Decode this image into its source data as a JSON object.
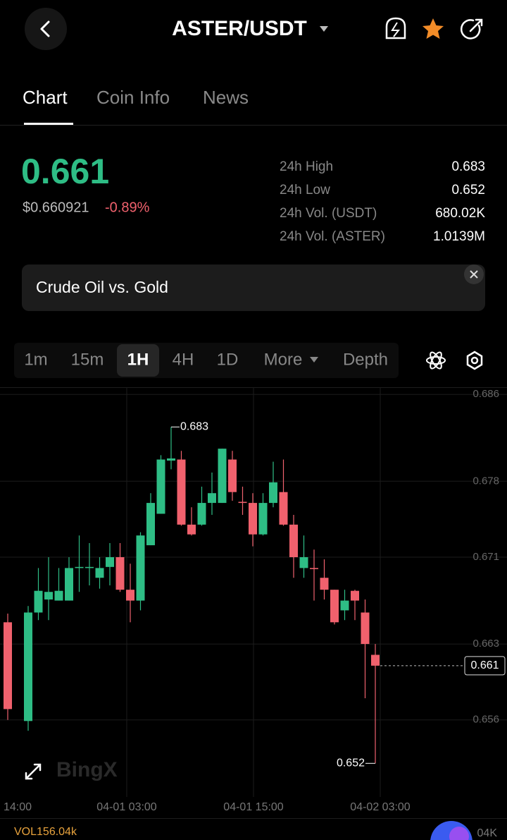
{
  "header": {
    "title": "ASTER/USDT"
  },
  "tabs": [
    "Chart",
    "Coin Info",
    "News"
  ],
  "price": {
    "last": "0.661",
    "usd": "$0.660921",
    "change": "-0.89%"
  },
  "stats": [
    {
      "label": "24h High",
      "value": "0.683"
    },
    {
      "label": "24h Low",
      "value": "0.652"
    },
    {
      "label": "24h Vol. (USDT)",
      "value": "680.02K"
    },
    {
      "label": "24h Vol. (ASTER)",
      "value": "1.0139M"
    }
  ],
  "banner": {
    "text": "Crude Oil vs. Gold"
  },
  "intervals": [
    "1m",
    "15m",
    "1H",
    "4H",
    "1D",
    "More",
    "Depth"
  ],
  "chart_data": {
    "type": "candlestick",
    "open": [
      0.665,
      null,
      0.6559,
      0.6659,
      0.6671,
      0.667,
      0.667,
      0.67,
      0.67,
      0.6691,
      0.6701,
      0.671,
      0.668,
      0.667,
      0.6721,
      0.675,
      0.6799,
      0.68,
      0.674,
      0.674,
      0.676,
      0.676,
      0.68,
      0.6761,
      0.676,
      0.6731,
      0.676,
      0.677,
      0.674,
      0.67,
      0.67,
      0.6691,
      0.668,
      0.6661,
      0.6679,
      0.6659,
      0.662
    ],
    "high": [
      0.6658,
      null,
      0.6665,
      0.67,
      0.671,
      0.67,
      0.671,
      0.673,
      0.6723,
      0.671,
      0.6723,
      0.6723,
      0.6704,
      0.6733,
      0.6769,
      0.6804,
      0.683,
      0.6808,
      0.6756,
      0.6775,
      0.6788,
      0.681,
      0.6808,
      0.6775,
      0.6769,
      0.6769,
      0.6798,
      0.68,
      0.6749,
      0.673,
      0.6717,
      0.6708,
      0.668,
      0.668,
      0.668,
      0.6671,
      0.663
    ],
    "low": [
      0.656,
      null,
      0.655,
      0.6652,
      0.6652,
      0.667,
      0.667,
      0.6678,
      0.6684,
      0.6681,
      0.6684,
      0.6678,
      0.665,
      0.6661,
      0.6721,
      0.675,
      0.6791,
      0.6739,
      0.673,
      0.6739,
      0.6749,
      0.676,
      0.6762,
      0.6749,
      0.672,
      0.673,
      0.6756,
      0.6739,
      0.6691,
      0.6691,
      0.667,
      0.6671,
      0.6648,
      0.6652,
      0.6652,
      0.658,
      0.652
    ],
    "close": [
      0.657,
      null,
      0.6659,
      0.6679,
      0.6678,
      0.6679,
      0.67,
      0.6701,
      0.6701,
      0.67,
      0.671,
      0.668,
      0.667,
      0.673,
      0.676,
      0.68,
      0.6801,
      0.674,
      0.6731,
      0.676,
      0.6769,
      0.681,
      0.677,
      0.676,
      0.6731,
      0.676,
      0.6779,
      0.674,
      0.671,
      0.671,
      0.6699,
      0.668,
      0.665,
      0.667,
      0.667,
      0.663,
      0.661
    ],
    "ylim": [
      0.6489,
      0.6866
    ],
    "yticks": [
      0.686,
      0.678,
      0.671,
      0.663,
      0.656
    ],
    "xtick_labels": [
      "14:00",
      "04-01 03:00",
      "04-01 15:00",
      "04-02 03:00"
    ],
    "high_label": 0.683,
    "low_label": 0.652,
    "last_price": 0.661,
    "up_color": "#2ebd85",
    "down_color": "#f0616d",
    "watermark": "BingX"
  },
  "volume": {
    "label": "VOL156.04k",
    "right_label": "04K"
  }
}
